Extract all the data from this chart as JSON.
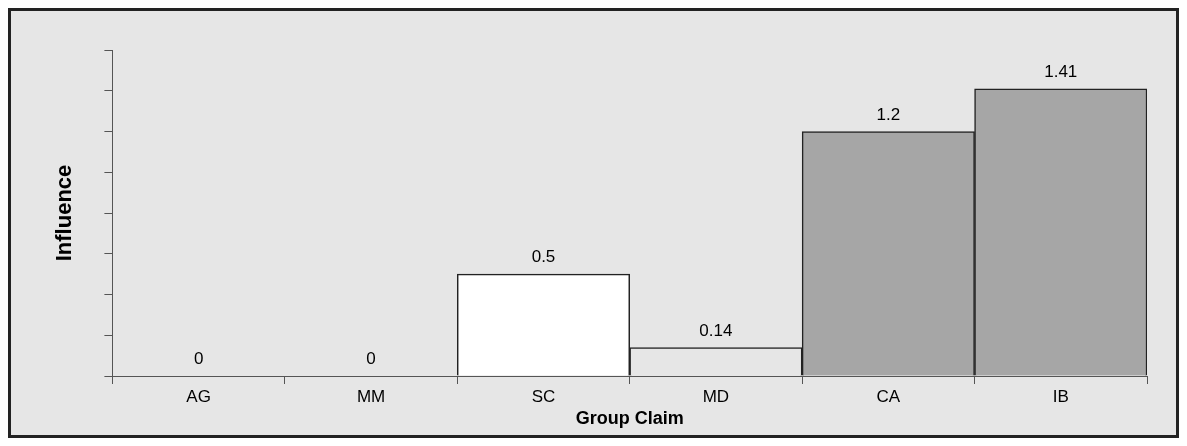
{
  "chart_data": {
    "type": "bar",
    "xlabel": "Group Claim",
    "ylabel": "Influence",
    "categories": [
      "AG",
      "MM",
      "SC",
      "MD",
      "CA",
      "IB"
    ],
    "values": [
      0,
      0,
      0.5,
      0.14,
      1.2,
      1.41
    ],
    "colors": [
      "#ffffff",
      "#ffffff",
      "#ffffff",
      "#e6e6e6",
      "#a6a6a6",
      "#a6a6a6"
    ],
    "ylim": [
      0,
      1.6
    ],
    "yticks": [
      {
        "value": 0,
        "label": null
      },
      {
        "value": 0.2,
        "label": null
      },
      {
        "value": 0.4,
        "label": null
      },
      {
        "value": 0.6,
        "label": null
      },
      {
        "value": 0.8,
        "label": null
      },
      {
        "value": 1,
        "label": null
      },
      {
        "value": 1.2,
        "label": null
      },
      {
        "value": 1.4,
        "label": null
      },
      {
        "value": 1.6,
        "label": null
      }
    ],
    "tick_labels": "x",
    "grid": false,
    "legend": false,
    "data_labels": true
  }
}
